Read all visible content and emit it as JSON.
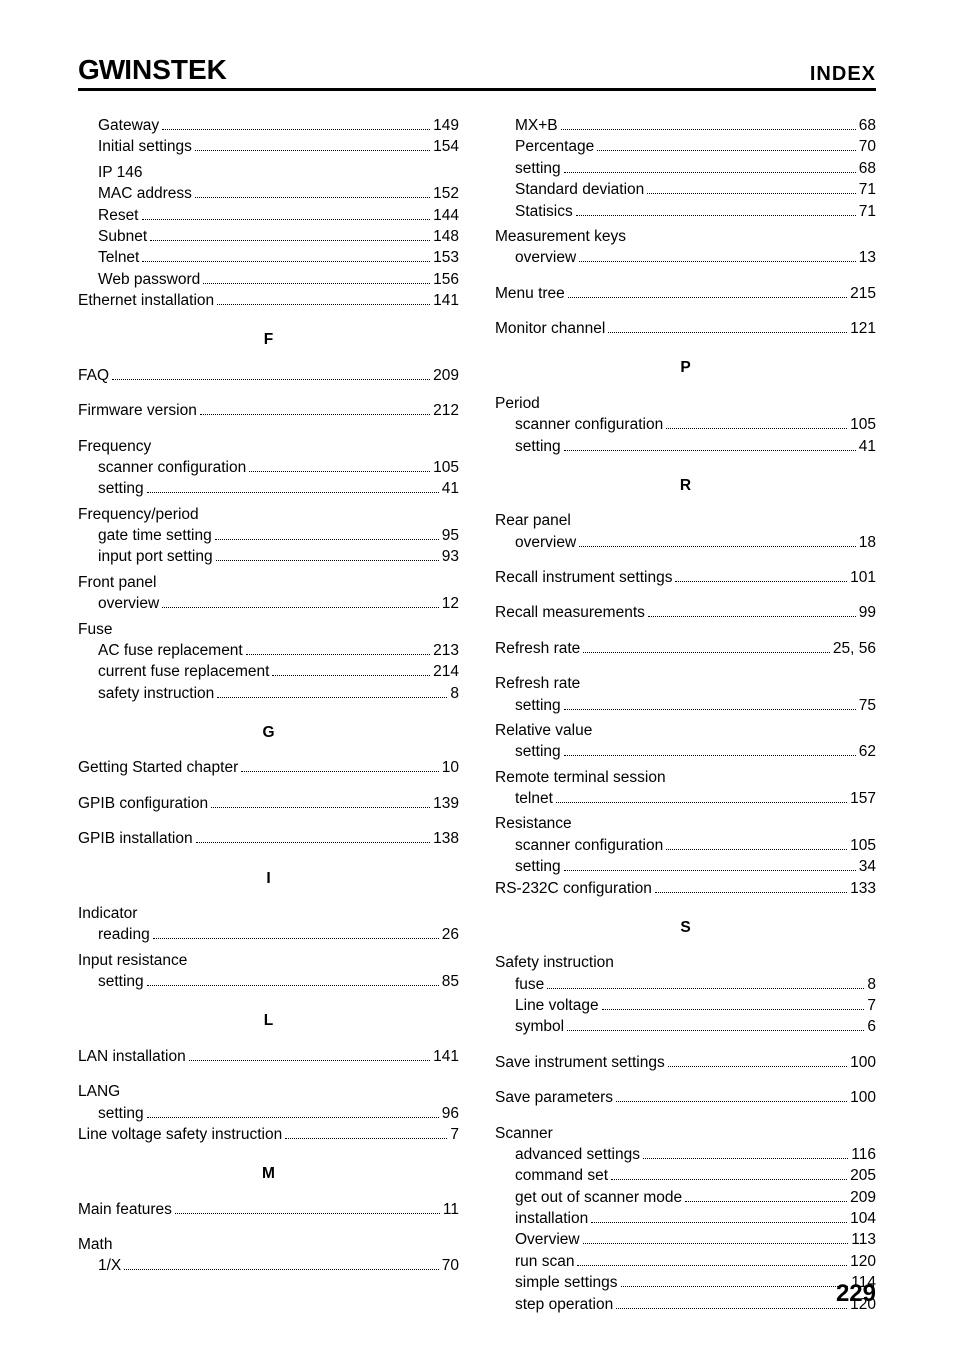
{
  "header": {
    "logo_left": "G",
    "logo_mid": "W",
    "logo_right": "INSTEK",
    "index_label": "INDEX"
  },
  "page_number": "229",
  "left_column": [
    {
      "type": "entry",
      "level": 1,
      "label": "Gateway",
      "page": "149"
    },
    {
      "type": "entry",
      "level": 1,
      "label": "Initial settings",
      "page": "154"
    },
    {
      "type": "plain",
      "level": 1,
      "label": "IP 146"
    },
    {
      "type": "entry",
      "level": 1,
      "label": "MAC address",
      "page": "152"
    },
    {
      "type": "entry",
      "level": 1,
      "label": "Reset",
      "page": "144"
    },
    {
      "type": "entry",
      "level": 1,
      "label": "Subnet",
      "page": "148"
    },
    {
      "type": "entry",
      "level": 1,
      "label": "Telnet",
      "page": "153"
    },
    {
      "type": "entry",
      "level": 1,
      "label": "Web password",
      "page": "156"
    },
    {
      "type": "entry",
      "level": 0,
      "label": "Ethernet installation",
      "page": "141"
    },
    {
      "type": "letter",
      "label": "F"
    },
    {
      "type": "entry",
      "level": 0,
      "label": "FAQ",
      "page": "209",
      "spaced": true
    },
    {
      "type": "entry",
      "level": 0,
      "label": "Firmware version",
      "page": "212",
      "spaced": true
    },
    {
      "type": "head",
      "level": 0,
      "label": "Frequency",
      "spaced": true
    },
    {
      "type": "entry",
      "level": 1,
      "label": "scanner configuration",
      "page": "105"
    },
    {
      "type": "entry",
      "level": 1,
      "label": "setting",
      "page": "41"
    },
    {
      "type": "head",
      "level": 0,
      "label": "Frequency/period"
    },
    {
      "type": "entry",
      "level": 1,
      "label": "gate time setting",
      "page": "95"
    },
    {
      "type": "entry",
      "level": 1,
      "label": "input port setting",
      "page": "93"
    },
    {
      "type": "head",
      "level": 0,
      "label": "Front panel"
    },
    {
      "type": "entry",
      "level": 1,
      "label": "overview",
      "page": "12"
    },
    {
      "type": "head",
      "level": 0,
      "label": "Fuse"
    },
    {
      "type": "entry",
      "level": 1,
      "label": "AC fuse replacement",
      "page": "213"
    },
    {
      "type": "entry",
      "level": 1,
      "label": "current fuse replacement",
      "page": "214"
    },
    {
      "type": "entry",
      "level": 1,
      "label": "safety instruction",
      "page": "8"
    },
    {
      "type": "letter",
      "label": "G"
    },
    {
      "type": "entry",
      "level": 0,
      "label": "Getting Started chapter",
      "page": "10",
      "spaced": true
    },
    {
      "type": "entry",
      "level": 0,
      "label": "GPIB configuration",
      "page": "139",
      "spaced": true
    },
    {
      "type": "entry",
      "level": 0,
      "label": "GPIB installation",
      "page": "138",
      "spaced": true
    },
    {
      "type": "letter",
      "label": "I"
    },
    {
      "type": "head",
      "level": 0,
      "label": "Indicator",
      "spaced": true
    },
    {
      "type": "entry",
      "level": 1,
      "label": "reading",
      "page": "26"
    },
    {
      "type": "head",
      "level": 0,
      "label": "Input resistance"
    },
    {
      "type": "entry",
      "level": 1,
      "label": "setting",
      "page": "85"
    },
    {
      "type": "letter",
      "label": "L"
    },
    {
      "type": "entry",
      "level": 0,
      "label": "LAN installation",
      "page": "141",
      "spaced": true
    },
    {
      "type": "head",
      "level": 0,
      "label": "LANG",
      "spaced": true
    },
    {
      "type": "entry",
      "level": 1,
      "label": "setting",
      "page": "96"
    },
    {
      "type": "entry",
      "level": 0,
      "label": "Line voltage    safety instruction",
      "page": "7"
    },
    {
      "type": "letter",
      "label": "M"
    },
    {
      "type": "entry",
      "level": 0,
      "label": "Main features",
      "page": "11",
      "spaced": true
    },
    {
      "type": "head",
      "level": 0,
      "label": "Math",
      "spaced": true
    },
    {
      "type": "entry",
      "level": 1,
      "label": "1/X",
      "page": "70"
    }
  ],
  "right_column": [
    {
      "type": "entry",
      "level": 1,
      "label": "MX+B",
      "page": "68"
    },
    {
      "type": "entry",
      "level": 1,
      "label": "Percentage",
      "page": "70"
    },
    {
      "type": "entry",
      "level": 1,
      "label": "setting",
      "page": "68"
    },
    {
      "type": "entry",
      "level": 1,
      "label": "Standard deviation",
      "page": "71"
    },
    {
      "type": "entry",
      "level": 1,
      "label": "Statisics",
      "page": "71"
    },
    {
      "type": "head",
      "level": 0,
      "label": "Measurement keys"
    },
    {
      "type": "entry",
      "level": 1,
      "label": "overview",
      "page": "13"
    },
    {
      "type": "entry",
      "level": 0,
      "label": "Menu tree",
      "page": "215",
      "spaced": true
    },
    {
      "type": "entry",
      "level": 0,
      "label": "Monitor channel",
      "page": "121",
      "spaced": true
    },
    {
      "type": "letter",
      "label": "P"
    },
    {
      "type": "head",
      "level": 0,
      "label": "Period",
      "spaced": true
    },
    {
      "type": "entry",
      "level": 1,
      "label": "scanner configuration",
      "page": "105"
    },
    {
      "type": "entry",
      "level": 1,
      "label": "setting",
      "page": "41"
    },
    {
      "type": "letter",
      "label": "R"
    },
    {
      "type": "head",
      "level": 0,
      "label": "Rear panel",
      "spaced": true
    },
    {
      "type": "entry",
      "level": 1,
      "label": "overview",
      "page": "18"
    },
    {
      "type": "entry",
      "level": 0,
      "label": "Recall instrument settings",
      "page": "101",
      "spaced": true
    },
    {
      "type": "entry",
      "level": 0,
      "label": "Recall measurements",
      "page": "99",
      "spaced": true
    },
    {
      "type": "entry",
      "level": 0,
      "label": "Refresh rate",
      "page": "25, 56",
      "spaced": true
    },
    {
      "type": "head",
      "level": 0,
      "label": "Refresh rate",
      "spaced": true
    },
    {
      "type": "entry",
      "level": 1,
      "label": "setting",
      "page": "75"
    },
    {
      "type": "head",
      "level": 0,
      "label": "Relative value"
    },
    {
      "type": "entry",
      "level": 1,
      "label": "setting",
      "page": "62"
    },
    {
      "type": "head",
      "level": 0,
      "label": "Remote terminal session"
    },
    {
      "type": "entry",
      "level": 1,
      "label": "telnet",
      "page": "157"
    },
    {
      "type": "head",
      "level": 0,
      "label": "Resistance"
    },
    {
      "type": "entry",
      "level": 1,
      "label": "scanner configuration",
      "page": "105"
    },
    {
      "type": "entry",
      "level": 1,
      "label": "setting",
      "page": "34"
    },
    {
      "type": "entry",
      "level": 0,
      "label": "RS-232C configuration",
      "page": "133"
    },
    {
      "type": "letter",
      "label": "S"
    },
    {
      "type": "head",
      "level": 0,
      "label": "Safety instruction",
      "spaced": true
    },
    {
      "type": "entry",
      "level": 1,
      "label": "fuse",
      "page": "8"
    },
    {
      "type": "entry",
      "level": 1,
      "label": "Line voltage",
      "page": "7"
    },
    {
      "type": "entry",
      "level": 1,
      "label": "symbol",
      "page": "6"
    },
    {
      "type": "entry",
      "level": 0,
      "label": "Save instrument settings",
      "page": "100",
      "spaced": true
    },
    {
      "type": "entry",
      "level": 0,
      "label": "Save parameters",
      "page": "100",
      "spaced": true
    },
    {
      "type": "head",
      "level": 0,
      "label": "Scanner",
      "spaced": true
    },
    {
      "type": "entry",
      "level": 1,
      "label": "advanced settings",
      "page": "116"
    },
    {
      "type": "entry",
      "level": 1,
      "label": "command set",
      "page": "205"
    },
    {
      "type": "entry",
      "level": 1,
      "label": "get out of scanner mode",
      "page": "209"
    },
    {
      "type": "entry",
      "level": 1,
      "label": "installation",
      "page": "104"
    },
    {
      "type": "entry",
      "level": 1,
      "label": "Overview",
      "page": "113"
    },
    {
      "type": "entry",
      "level": 1,
      "label": "run scan",
      "page": "120"
    },
    {
      "type": "entry",
      "level": 1,
      "label": "simple settings",
      "page": "114"
    },
    {
      "type": "entry",
      "level": 1,
      "label": "step operation",
      "page": "120"
    }
  ]
}
